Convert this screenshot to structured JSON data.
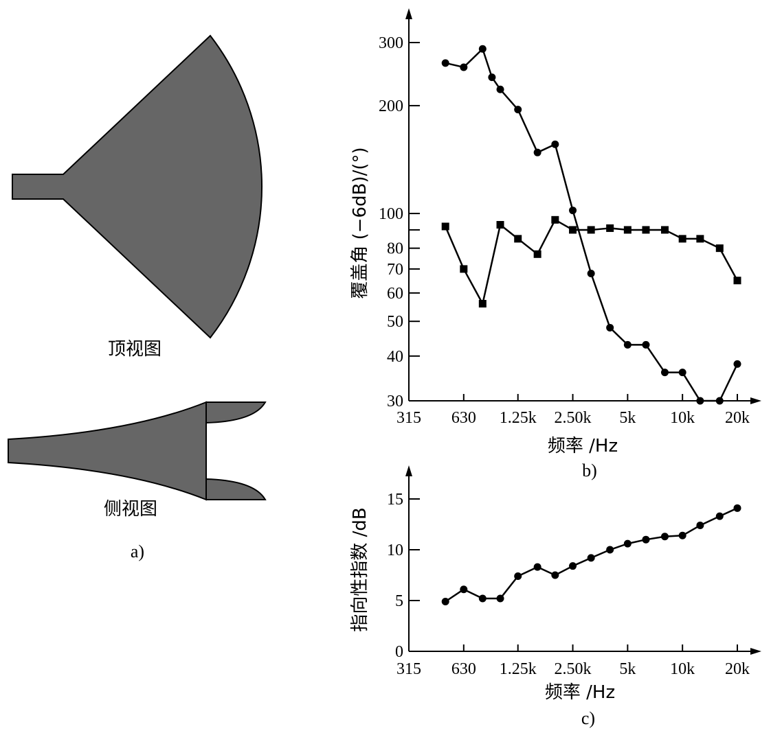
{
  "panel_a": {
    "top_view_label": "顶视图",
    "side_view_label": "侧视图",
    "panel_label": "a)"
  },
  "chart_data": [
    {
      "id": "b",
      "type": "line",
      "panel_label": "b)",
      "xlabel": "频率 /Hz",
      "ylabel": "覆盖角 (−6dB)/(°)",
      "x_scale": "log",
      "y_scale": "log",
      "xlim": [
        315,
        24000
      ],
      "ylim": [
        30,
        340
      ],
      "x_ticks": [
        {
          "value": 315,
          "label": "315"
        },
        {
          "value": 630,
          "label": "630"
        },
        {
          "value": 1250,
          "label": "1.25k"
        },
        {
          "value": 2500,
          "label": "2.50k"
        },
        {
          "value": 5000,
          "label": "5k"
        },
        {
          "value": 10000,
          "label": "10k"
        },
        {
          "value": 20000,
          "label": "20k"
        }
      ],
      "y_ticks": [
        {
          "value": 30,
          "label": "30"
        },
        {
          "value": 40,
          "label": "40"
        },
        {
          "value": 50,
          "label": "50"
        },
        {
          "value": 60,
          "label": "60"
        },
        {
          "value": 70,
          "label": "70"
        },
        {
          "value": 80,
          "label": "80"
        },
        {
          "value": 90,
          "label": ""
        },
        {
          "value": 100,
          "label": "100"
        },
        {
          "value": 200,
          "label": "200"
        },
        {
          "value": 300,
          "label": "300"
        }
      ],
      "series": [
        {
          "marker": "circle",
          "x": [
            500,
            630,
            800,
            900,
            1000,
            1250,
            1600,
            2000,
            2500,
            3150,
            4000,
            5000,
            6300,
            8000,
            10000,
            12500,
            16000,
            20000
          ],
          "y": [
            263,
            256,
            288,
            240,
            222,
            195,
            148,
            156,
            102,
            68,
            48,
            43,
            43,
            36,
            36,
            30,
            30,
            38
          ]
        },
        {
          "marker": "square",
          "x": [
            500,
            630,
            800,
            1000,
            1250,
            1600,
            2000,
            2500,
            3150,
            4000,
            5000,
            6300,
            8000,
            10000,
            12500,
            16000,
            20000
          ],
          "y": [
            92,
            70,
            56,
            93,
            85,
            77,
            96,
            90,
            90,
            91,
            90,
            90,
            90,
            85,
            85,
            80,
            65
          ]
        }
      ]
    },
    {
      "id": "c",
      "type": "line",
      "panel_label": "c)",
      "xlabel": "频率 /Hz",
      "ylabel": "指向性指数 /dB",
      "x_scale": "log",
      "y_scale": "linear",
      "xlim": [
        315,
        24000
      ],
      "ylim": [
        0,
        17
      ],
      "x_ticks": [
        {
          "value": 315,
          "label": "315"
        },
        {
          "value": 630,
          "label": "630"
        },
        {
          "value": 1250,
          "label": "1.25k"
        },
        {
          "value": 2500,
          "label": "2.50k"
        },
        {
          "value": 5000,
          "label": "5k"
        },
        {
          "value": 10000,
          "label": "10k"
        },
        {
          "value": 20000,
          "label": "20k"
        }
      ],
      "y_ticks": [
        {
          "value": 0,
          "label": "0"
        },
        {
          "value": 5,
          "label": "5"
        },
        {
          "value": 10,
          "label": "10"
        },
        {
          "value": 15,
          "label": "15"
        }
      ],
      "series": [
        {
          "marker": "circle",
          "x": [
            500,
            630,
            800,
            1000,
            1250,
            1600,
            2000,
            2500,
            3150,
            4000,
            5000,
            6300,
            8000,
            10000,
            12500,
            16000,
            20000
          ],
          "y": [
            4.9,
            6.1,
            5.2,
            5.2,
            7.4,
            8.3,
            7.5,
            8.4,
            9.2,
            10.0,
            10.6,
            11.0,
            11.3,
            11.4,
            12.4,
            13.3,
            14.1
          ]
        }
      ]
    }
  ]
}
